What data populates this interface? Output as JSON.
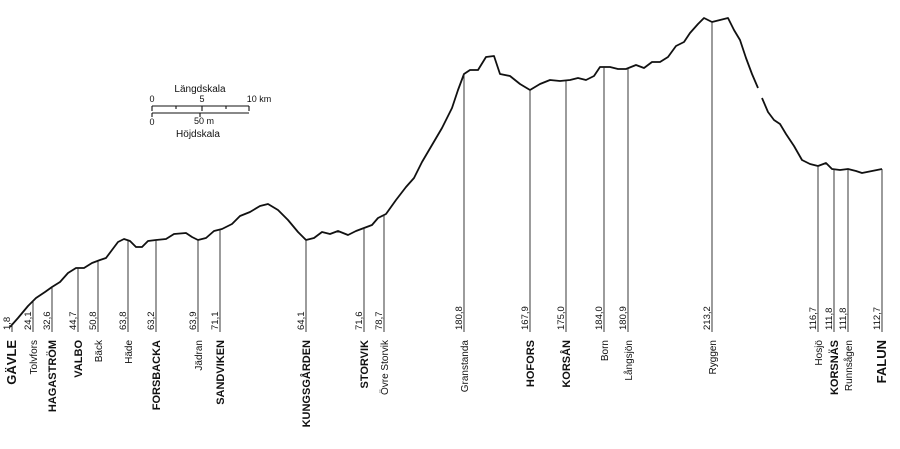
{
  "scale": {
    "length_title": "Längdskala",
    "height_title": "Höjdskala",
    "length_ticks": [
      "0",
      "5",
      "10 km"
    ],
    "height_ticks": [
      "0",
      "50 m"
    ]
  },
  "stations": [
    {
      "name": "GÄVLE",
      "elev": "1,8",
      "major": true,
      "end": true
    },
    {
      "name": "Tolvfors",
      "elev": "24,1"
    },
    {
      "name": "HAGASTRÖM",
      "elev": "32,6",
      "major": true
    },
    {
      "name": "VALBO",
      "elev": "44,7",
      "major": true
    },
    {
      "name": "Bäck",
      "elev": "50,8"
    },
    {
      "name": "Häde",
      "elev": "63,8"
    },
    {
      "name": "FORSBACKA",
      "elev": "63,2",
      "major": true
    },
    {
      "name": "Jädran",
      "elev": "63,9"
    },
    {
      "name": "SANDVIKEN",
      "elev": "71,1",
      "major": true
    },
    {
      "name": "KUNGSGÅRDEN",
      "elev": "64,1",
      "major": true
    },
    {
      "name": "STORVIK",
      "elev": "71,6",
      "major": true
    },
    {
      "name": "Övre Storvik",
      "elev": "78,7"
    },
    {
      "name": "Granstanda",
      "elev": "180,8"
    },
    {
      "name": "HOFORS",
      "elev": "167,9",
      "major": true
    },
    {
      "name": "KORSÅN",
      "elev": "175,0",
      "major": true
    },
    {
      "name": "Born",
      "elev": "184,0"
    },
    {
      "name": "Långsjön",
      "elev": "180,9"
    },
    {
      "name": "Ryggen",
      "elev": "213,2"
    },
    {
      "name": "Hosjö",
      "elev": "116,7"
    },
    {
      "name": "KORSNÄS",
      "elev": "111,8",
      "major": true
    },
    {
      "name": "Runnsågen",
      "elev": "111,8"
    },
    {
      "name": "FALUN",
      "elev": "112,7",
      "major": true,
      "end": true
    }
  ]
}
